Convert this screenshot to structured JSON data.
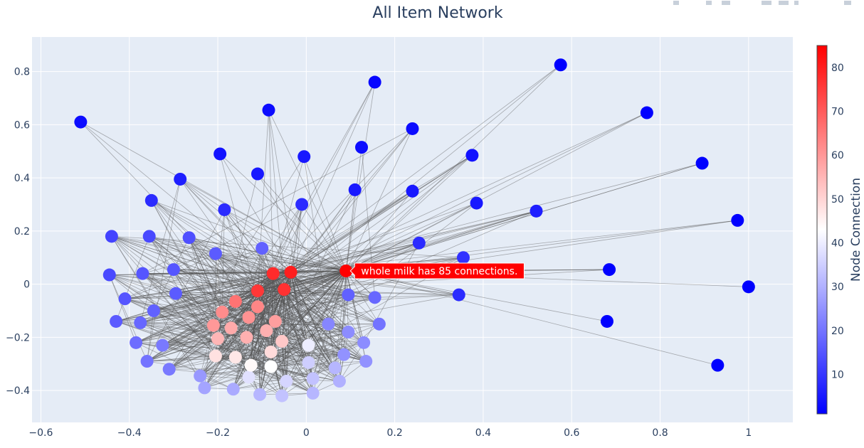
{
  "colors": {
    "plot_bg": "#e5ecf6",
    "grid": "#ffffff",
    "edge": "#555555",
    "text": "#2a3f5f",
    "hover_bg": "#ff0000",
    "hover_text": "#ffffff"
  },
  "chart_data": {
    "type": "scatter",
    "subtype": "network-graph",
    "title": "All Item Network",
    "xlim": [
      -0.62,
      1.1
    ],
    "ylim": [
      -0.52,
      0.93
    ],
    "x_ticks": [
      -0.6,
      -0.4,
      -0.2,
      0,
      0.2,
      0.4,
      0.6,
      0.8,
      1
    ],
    "x_tick_labels": [
      "−0.6",
      "−0.4",
      "−0.2",
      "0",
      "0.2",
      "0.4",
      "0.6",
      "0.8",
      "1"
    ],
    "y_ticks": [
      -0.4,
      -0.2,
      0,
      0.2,
      0.4,
      0.6,
      0.8
    ],
    "y_tick_labels": [
      "−0.4",
      "−0.2",
      "0",
      "0.2",
      "0.4",
      "0.6",
      "0.8"
    ],
    "grid": true,
    "colorbar": {
      "title": "Node Connection",
      "range": [
        1,
        85
      ],
      "ticks": [
        10,
        20,
        30,
        40,
        50,
        60,
        70,
        80
      ],
      "colorscale": [
        [
          0,
          "#0000ff"
        ],
        [
          0.5,
          "#ffffff"
        ],
        [
          1,
          "#ff0000"
        ]
      ]
    },
    "hover": {
      "text": "whole milk has 85 connections.",
      "node": [
        0.09,
        0.05
      ]
    },
    "hubs": [
      {
        "x": 0.09,
        "y": 0.05,
        "c": 85
      },
      {
        "x": -0.035,
        "y": 0.045,
        "c": 80
      },
      {
        "x": -0.075,
        "y": 0.04,
        "c": 78
      },
      {
        "x": -0.11,
        "y": -0.025,
        "c": 76
      },
      {
        "x": -0.05,
        "y": -0.02,
        "c": 77
      }
    ],
    "nodes": [
      [
        0.09,
        0.05,
        85
      ],
      [
        -0.035,
        0.045,
        80
      ],
      [
        -0.075,
        0.04,
        78
      ],
      [
        -0.11,
        -0.025,
        76
      ],
      [
        -0.05,
        -0.02,
        77
      ],
      [
        -0.16,
        -0.065,
        66
      ],
      [
        -0.11,
        -0.085,
        63
      ],
      [
        -0.19,
        -0.105,
        62
      ],
      [
        -0.13,
        -0.125,
        61
      ],
      [
        -0.21,
        -0.155,
        60
      ],
      [
        -0.07,
        -0.14,
        59
      ],
      [
        -0.17,
        -0.165,
        57
      ],
      [
        -0.09,
        -0.175,
        56
      ],
      [
        -0.2,
        -0.205,
        55
      ],
      [
        -0.135,
        -0.2,
        56
      ],
      [
        -0.055,
        -0.215,
        52
      ],
      [
        -0.08,
        -0.255,
        49
      ],
      [
        -0.205,
        -0.27,
        48
      ],
      [
        -0.16,
        -0.275,
        47
      ],
      [
        -0.125,
        -0.305,
        44
      ],
      [
        -0.08,
        -0.31,
        43
      ],
      [
        0.005,
        -0.23,
        40
      ],
      [
        -0.13,
        -0.35,
        38
      ],
      [
        -0.045,
        -0.365,
        36
      ],
      [
        0.005,
        -0.295,
        35
      ],
      [
        0.015,
        -0.355,
        33
      ],
      [
        0.065,
        -0.315,
        31
      ],
      [
        0.075,
        -0.365,
        30
      ],
      [
        -0.105,
        -0.415,
        31
      ],
      [
        -0.055,
        -0.42,
        33
      ],
      [
        0.015,
        -0.41,
        31
      ],
      [
        -0.165,
        -0.395,
        29
      ],
      [
        -0.23,
        -0.39,
        28
      ],
      [
        -0.24,
        -0.345,
        26
      ],
      [
        0.085,
        -0.265,
        25
      ],
      [
        0.13,
        -0.22,
        24
      ],
      [
        0.135,
        -0.29,
        25
      ],
      [
        0.095,
        -0.18,
        24
      ],
      [
        0.05,
        -0.15,
        23
      ],
      [
        0.165,
        -0.15,
        20
      ],
      [
        0.155,
        -0.05,
        18
      ],
      [
        0.095,
        -0.04,
        17
      ],
      [
        -0.31,
        -0.32,
        21
      ],
      [
        -0.36,
        -0.29,
        20
      ],
      [
        -0.325,
        -0.23,
        21
      ],
      [
        -0.385,
        -0.22,
        19
      ],
      [
        -0.375,
        -0.145,
        18
      ],
      [
        -0.345,
        -0.1,
        17
      ],
      [
        -0.43,
        -0.14,
        16
      ],
      [
        -0.41,
        -0.055,
        15
      ],
      [
        -0.295,
        -0.035,
        16
      ],
      [
        -0.37,
        0.04,
        15
      ],
      [
        -0.3,
        0.055,
        15
      ],
      [
        -0.445,
        0.035,
        13
      ],
      [
        -0.44,
        0.18,
        12
      ],
      [
        -0.355,
        0.18,
        13
      ],
      [
        -0.265,
        0.175,
        14
      ],
      [
        -0.205,
        0.115,
        16
      ],
      [
        -0.1,
        0.135,
        17
      ],
      [
        -0.35,
        0.315,
        8
      ],
      [
        -0.185,
        0.28,
        8
      ],
      [
        -0.01,
        0.3,
        8
      ],
      [
        -0.285,
        0.395,
        6
      ],
      [
        -0.11,
        0.415,
        5
      ],
      [
        -0.005,
        0.48,
        5
      ],
      [
        -0.195,
        0.49,
        4
      ],
      [
        -0.085,
        0.655,
        3
      ],
      [
        -0.51,
        0.61,
        3
      ],
      [
        0.11,
        0.355,
        5
      ],
      [
        0.125,
        0.515,
        3
      ],
      [
        0.155,
        0.76,
        2
      ],
      [
        0.24,
        0.585,
        3
      ],
      [
        0.24,
        0.35,
        5
      ],
      [
        0.255,
        0.155,
        8
      ],
      [
        0.375,
        0.485,
        4
      ],
      [
        0.385,
        0.305,
        5
      ],
      [
        0.355,
        0.1,
        9
      ],
      [
        0.345,
        -0.04,
        8
      ],
      [
        0.52,
        0.275,
        6
      ],
      [
        0.575,
        0.825,
        1
      ],
      [
        0.77,
        0.645,
        1
      ],
      [
        0.895,
        0.455,
        1
      ],
      [
        0.975,
        0.24,
        1
      ],
      [
        0.685,
        0.055,
        1
      ],
      [
        1.0,
        -0.01,
        1
      ],
      [
        0.68,
        -0.14,
        1
      ],
      [
        0.93,
        -0.305,
        1
      ]
    ]
  }
}
